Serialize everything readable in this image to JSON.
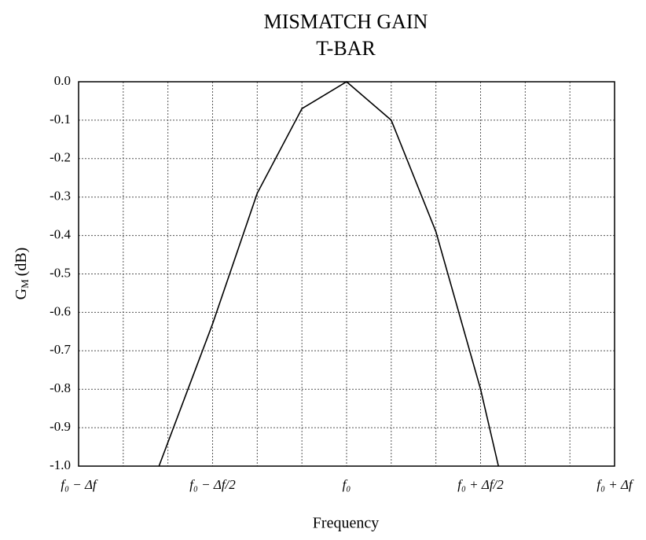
{
  "chart_data": {
    "type": "line",
    "title": "MISMATCH GAIN",
    "subtitle": "T-BAR",
    "xlabel": "Frequency",
    "ylabel": {
      "main": "G",
      "sub": "M",
      "unit": "(dB)"
    },
    "series": [
      {
        "color": "#000000",
        "x": [
          -4.2,
          -3,
          -2,
          -1,
          0,
          1,
          2,
          3,
          3.4
        ],
        "values": [
          -1.0,
          -0.63,
          -0.29,
          -0.07,
          0,
          -0.1,
          -0.39,
          -0.8,
          -1.0
        ]
      }
    ],
    "xlim": [
      -6,
      6
    ],
    "xticks": [
      {
        "value": -6,
        "label": "f₀ − Δf"
      },
      {
        "value": -3,
        "label": "f₀ − Δf/2"
      },
      {
        "value": 0,
        "label": "f₀"
      },
      {
        "value": 3,
        "label": "f₀ + Δf/2"
      },
      {
        "value": 6,
        "label": "f₀ + Δf"
      }
    ],
    "xminor": [
      -5,
      -4,
      -2,
      -1,
      1,
      2,
      4,
      5
    ],
    "ylim": [
      -1,
      0
    ],
    "yticks": [
      {
        "value": 0,
        "label": "0.0"
      },
      -0.1,
      -0.2,
      -0.3,
      -0.4,
      -0.5,
      -0.6,
      -0.7,
      -0.8,
      -0.9,
      {
        "value": -1,
        "label": "-1.0"
      }
    ],
    "grid": true
  }
}
